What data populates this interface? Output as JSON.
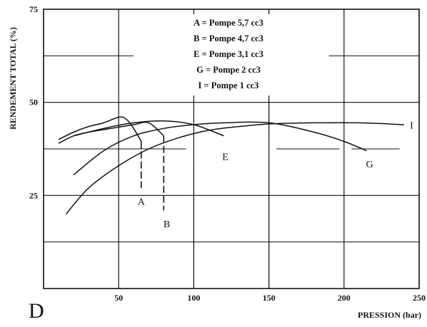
{
  "chart_data": {
    "type": "line",
    "panel_label": "D",
    "xlabel": "PRESSION (bar)",
    "ylabel": "RENDEMENT TOTAL (%)",
    "xlim": [
      0,
      250
    ],
    "ylim": [
      0,
      75
    ],
    "x_ticks": [
      50,
      100,
      150,
      200,
      250
    ],
    "y_ticks": [
      25,
      50,
      75
    ],
    "legend": [
      "A = Pompe 5,7 cc3",
      "B = Pompe 4,7 cc3",
      "E = Pompe 3,1 cc3",
      "G = Pompe 2 cc3",
      "I = Pompe 1 cc3"
    ],
    "legend_position": "top-center",
    "grid": true,
    "series": [
      {
        "name": "A",
        "points": [
          [
            10,
            40
          ],
          [
            20,
            42
          ],
          [
            30,
            43.5
          ],
          [
            40,
            44.5
          ],
          [
            50,
            46
          ],
          [
            55,
            45.5
          ],
          [
            60,
            43
          ],
          [
            65,
            39.5
          ]
        ],
        "end_marker_to": 27
      },
      {
        "name": "B",
        "points": [
          [
            10,
            39
          ],
          [
            20,
            41
          ],
          [
            30,
            42
          ],
          [
            45,
            43
          ],
          [
            60,
            44
          ],
          [
            70,
            44.5
          ],
          [
            80,
            41
          ]
        ],
        "end_marker_to": 21
      },
      {
        "name": "E",
        "points": [
          [
            20,
            41
          ],
          [
            40,
            43
          ],
          [
            60,
            44.5
          ],
          [
            80,
            45
          ],
          [
            100,
            44
          ],
          [
            120,
            41
          ]
        ],
        "end_marker_to": null
      },
      {
        "name": "G",
        "points": [
          [
            20,
            30.5
          ],
          [
            40,
            37
          ],
          [
            60,
            41
          ],
          [
            80,
            43
          ],
          [
            100,
            44
          ],
          [
            120,
            44.5
          ],
          [
            150,
            44.5
          ],
          [
            180,
            42
          ],
          [
            200,
            39.5
          ],
          [
            215,
            37
          ]
        ],
        "end_marker_to": null
      },
      {
        "name": "I",
        "points": [
          [
            15,
            20
          ],
          [
            30,
            27
          ],
          [
            50,
            33
          ],
          [
            70,
            37.5
          ],
          [
            90,
            40.5
          ],
          [
            110,
            42.5
          ],
          [
            130,
            43.5
          ],
          [
            150,
            44.2
          ],
          [
            180,
            44.5
          ],
          [
            210,
            44.5
          ],
          [
            240,
            44
          ]
        ],
        "end_marker_to": null
      }
    ]
  }
}
